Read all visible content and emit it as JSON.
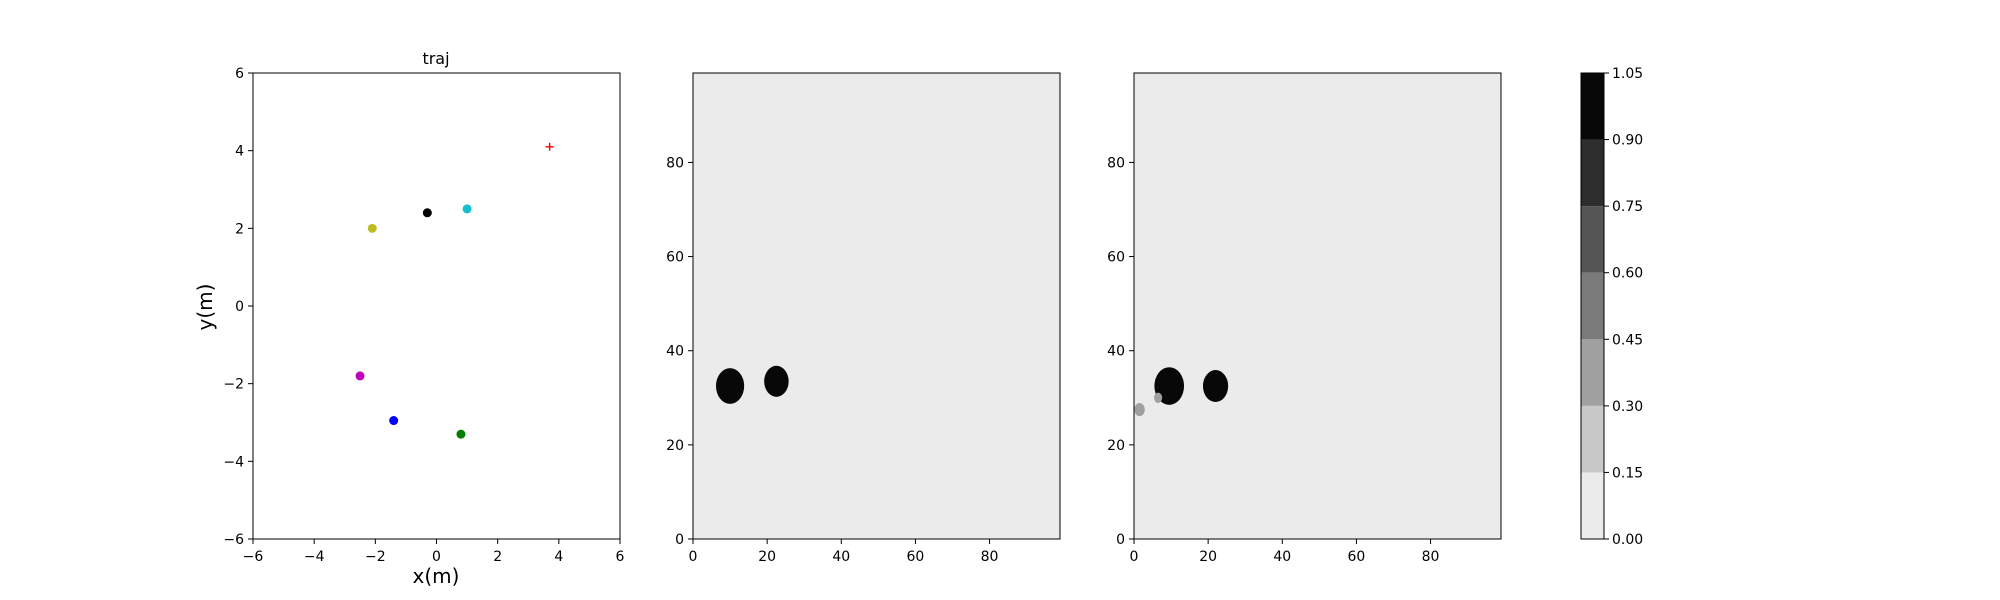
{
  "chart_data": [
    {
      "type": "scatter",
      "title": "traj",
      "xlabel": "x(m)",
      "ylabel": "y(m)",
      "xlim": [
        -6,
        6
      ],
      "ylim": [
        -6,
        6
      ],
      "xticks": [
        -6,
        -4,
        -2,
        0,
        2,
        4,
        6
      ],
      "yticks": [
        -6,
        -4,
        -2,
        0,
        2,
        4,
        6
      ],
      "xtick_labels": [
        "−6",
        "−4",
        "−2",
        "0",
        "2",
        "4",
        "6"
      ],
      "ytick_labels": [
        "−6",
        "−4",
        "−2",
        "0",
        "2",
        "4",
        "6"
      ],
      "grid": false,
      "points": [
        {
          "x": -0.3,
          "y": 2.4,
          "color": "#000000",
          "marker": "circle"
        },
        {
          "x": 1.0,
          "y": 2.5,
          "color": "#17becf",
          "marker": "circle"
        },
        {
          "x": -2.1,
          "y": 2.0,
          "color": "#bcbd22",
          "marker": "circle"
        },
        {
          "x": -2.5,
          "y": -1.8,
          "color": "#bf00bf",
          "marker": "circle"
        },
        {
          "x": -1.4,
          "y": -2.95,
          "color": "#0000ff",
          "marker": "circle"
        },
        {
          "x": 0.8,
          "y": -3.3,
          "color": "#008000",
          "marker": "circle"
        },
        {
          "x": 3.7,
          "y": 4.1,
          "color": "#ff0000",
          "marker": "plus"
        }
      ]
    },
    {
      "type": "heatmap",
      "xlim": [
        0,
        99
      ],
      "ylim": [
        0,
        99
      ],
      "xticks": [
        0,
        20,
        40,
        60,
        80
      ],
      "yticks": [
        0,
        20,
        40,
        60,
        80
      ],
      "xtick_labels": [
        "0",
        "20",
        "40",
        "60",
        "80"
      ],
      "ytick_labels": [
        "0",
        "20",
        "40",
        "60",
        "80"
      ],
      "background_value": 0.0,
      "blobs": [
        {
          "cx": 10,
          "cy": 32.5,
          "r": 3.8,
          "value": 1.0
        },
        {
          "cx": 22.5,
          "cy": 33.5,
          "r": 3.3,
          "value": 1.0
        }
      ]
    },
    {
      "type": "heatmap",
      "xlim": [
        0,
        99
      ],
      "ylim": [
        0,
        99
      ],
      "xticks": [
        0,
        20,
        40,
        60,
        80
      ],
      "yticks": [
        0,
        20,
        40,
        60,
        80
      ],
      "xtick_labels": [
        "0",
        "20",
        "40",
        "60",
        "80"
      ],
      "ytick_labels": [
        "0",
        "20",
        "40",
        "60",
        "80"
      ],
      "background_value": 0.0,
      "blobs": [
        {
          "cx": 9.5,
          "cy": 32.5,
          "r": 4.0,
          "value": 1.0
        },
        {
          "cx": 22,
          "cy": 32.5,
          "r": 3.4,
          "value": 1.0
        },
        {
          "cx": 1.5,
          "cy": 27.5,
          "r": 1.4,
          "value": 0.3
        },
        {
          "cx": 6.5,
          "cy": 30.0,
          "r": 1.1,
          "value": 0.3
        }
      ]
    }
  ],
  "colorbar": {
    "levels": [
      0.0,
      0.15,
      0.3,
      0.45,
      0.6,
      0.75,
      0.9,
      1.05
    ],
    "level_labels": [
      "0.00",
      "0.15",
      "0.30",
      "0.45",
      "0.60",
      "0.75",
      "0.90",
      "1.05"
    ],
    "colors": [
      "#ebebeb",
      "#c8c8c8",
      "#a0a0a0",
      "#7a7a7a",
      "#555555",
      "#2d2d2d",
      "#080808"
    ]
  }
}
